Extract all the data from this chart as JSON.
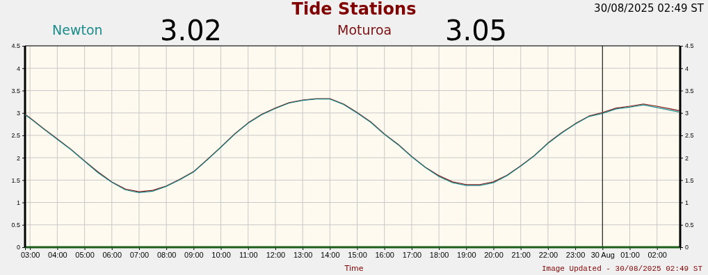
{
  "chart_data": {
    "type": "line",
    "title": "Tide Stations",
    "xlabel": "Time",
    "annotations": [
      "3.02",
      "3.05",
      "30/08/2025 02:49 ST",
      "Image Updated - 30/08/2025 02:49 ST"
    ],
    "x": [
      "2025-08-29T02:49",
      "2025-08-29T03:00",
      "2025-08-29T03:30",
      "2025-08-29T04:00",
      "2025-08-29T04:30",
      "2025-08-29T05:00",
      "2025-08-29T05:30",
      "2025-08-29T06:00",
      "2025-08-29T06:30",
      "2025-08-29T07:00",
      "2025-08-29T07:30",
      "2025-08-29T08:00",
      "2025-08-29T08:30",
      "2025-08-29T09:00",
      "2025-08-29T09:30",
      "2025-08-29T10:00",
      "2025-08-29T10:30",
      "2025-08-29T11:00",
      "2025-08-29T11:30",
      "2025-08-29T12:00",
      "2025-08-29T12:30",
      "2025-08-29T13:00",
      "2025-08-29T13:30",
      "2025-08-29T14:00",
      "2025-08-29T14:30",
      "2025-08-29T15:00",
      "2025-08-29T15:30",
      "2025-08-29T16:00",
      "2025-08-29T16:30",
      "2025-08-29T17:00",
      "2025-08-29T17:30",
      "2025-08-29T18:00",
      "2025-08-29T18:30",
      "2025-08-29T19:00",
      "2025-08-29T19:30",
      "2025-08-29T20:00",
      "2025-08-29T20:30",
      "2025-08-29T21:00",
      "2025-08-29T21:30",
      "2025-08-29T22:00",
      "2025-08-29T22:30",
      "2025-08-29T23:00",
      "2025-08-29T23:30",
      "2025-08-30T00:00",
      "2025-08-30T00:30",
      "2025-08-30T01:00",
      "2025-08-30T01:30",
      "2025-08-30T02:00",
      "2025-08-30T02:30",
      "2025-08-30T02:49"
    ],
    "series": [
      {
        "name": "Newton",
        "color": "#1a8a8a",
        "values": [
          2.96,
          2.88,
          2.64,
          2.41,
          2.18,
          1.92,
          1.66,
          1.45,
          1.28,
          1.22,
          1.25,
          1.36,
          1.51,
          1.68,
          1.95,
          2.23,
          2.52,
          2.77,
          2.96,
          3.1,
          3.22,
          3.28,
          3.31,
          3.31,
          3.19,
          3.0,
          2.79,
          2.52,
          2.29,
          2.02,
          1.78,
          1.58,
          1.44,
          1.38,
          1.38,
          1.44,
          1.6,
          1.81,
          2.04,
          2.32,
          2.55,
          2.75,
          2.92,
          2.99,
          3.09,
          3.13,
          3.18,
          3.12,
          3.06,
          3.02
        ]
      },
      {
        "name": "Moturoa",
        "color": "#7a1010",
        "values": [
          2.97,
          2.89,
          2.65,
          2.42,
          2.19,
          1.93,
          1.68,
          1.46,
          1.3,
          1.24,
          1.27,
          1.37,
          1.52,
          1.69,
          1.96,
          2.24,
          2.53,
          2.78,
          2.97,
          3.11,
          3.23,
          3.29,
          3.32,
          3.32,
          3.2,
          3.01,
          2.8,
          2.53,
          2.3,
          2.03,
          1.79,
          1.6,
          1.46,
          1.4,
          1.4,
          1.46,
          1.61,
          1.82,
          2.05,
          2.33,
          2.56,
          2.76,
          2.93,
          3.01,
          3.11,
          3.15,
          3.2,
          3.15,
          3.09,
          3.05
        ]
      }
    ],
    "xlim": [
      "2025-08-29T02:49",
      "2025-08-30T02:51"
    ],
    "xticks": [
      {
        "value": "2025-08-29T03:00",
        "label": "03:00"
      },
      {
        "value": "2025-08-29T04:00",
        "label": "04:00"
      },
      {
        "value": "2025-08-29T05:00",
        "label": "05:00"
      },
      {
        "value": "2025-08-29T06:00",
        "label": "06:00"
      },
      {
        "value": "2025-08-29T07:00",
        "label": "07:00"
      },
      {
        "value": "2025-08-29T08:00",
        "label": "08:00"
      },
      {
        "value": "2025-08-29T09:00",
        "label": "09:00"
      },
      {
        "value": "2025-08-29T10:00",
        "label": "10:00"
      },
      {
        "value": "2025-08-29T11:00",
        "label": "11:00"
      },
      {
        "value": "2025-08-29T12:00",
        "label": "12:00"
      },
      {
        "value": "2025-08-29T13:00",
        "label": "13:00"
      },
      {
        "value": "2025-08-29T14:00",
        "label": "14:00"
      },
      {
        "value": "2025-08-29T15:00",
        "label": "15:00"
      },
      {
        "value": "2025-08-29T16:00",
        "label": "16:00"
      },
      {
        "value": "2025-08-29T17:00",
        "label": "17:00"
      },
      {
        "value": "2025-08-29T18:00",
        "label": "18:00"
      },
      {
        "value": "2025-08-29T19:00",
        "label": "19:00"
      },
      {
        "value": "2025-08-29T20:00",
        "label": "20:00"
      },
      {
        "value": "2025-08-29T21:00",
        "label": "21:00"
      },
      {
        "value": "2025-08-29T22:00",
        "label": "22:00"
      },
      {
        "value": "2025-08-29T23:00",
        "label": "23:00"
      },
      {
        "value": "2025-08-30T00:00",
        "label": "30 Aug"
      },
      {
        "value": "2025-08-30T01:00",
        "label": "01:00"
      },
      {
        "value": "2025-08-30T02:00",
        "label": "02:00"
      }
    ],
    "ylim": [
      0,
      4.5
    ],
    "yticks": [
      0,
      0.5,
      1,
      1.5,
      2,
      2.5,
      3,
      3.5,
      4,
      4.5
    ],
    "y2lim": [
      0,
      4.5
    ],
    "y2ticks": [
      0,
      0.5,
      1,
      1.5,
      2,
      2.5,
      3,
      3.5,
      4,
      4.5
    ],
    "ref_lines": [
      {
        "axis": "x",
        "value": "2025-08-30T00:00",
        "color": "#000000"
      }
    ],
    "grid": true,
    "legend": "top",
    "marker": "none",
    "line_style": "solid"
  }
}
